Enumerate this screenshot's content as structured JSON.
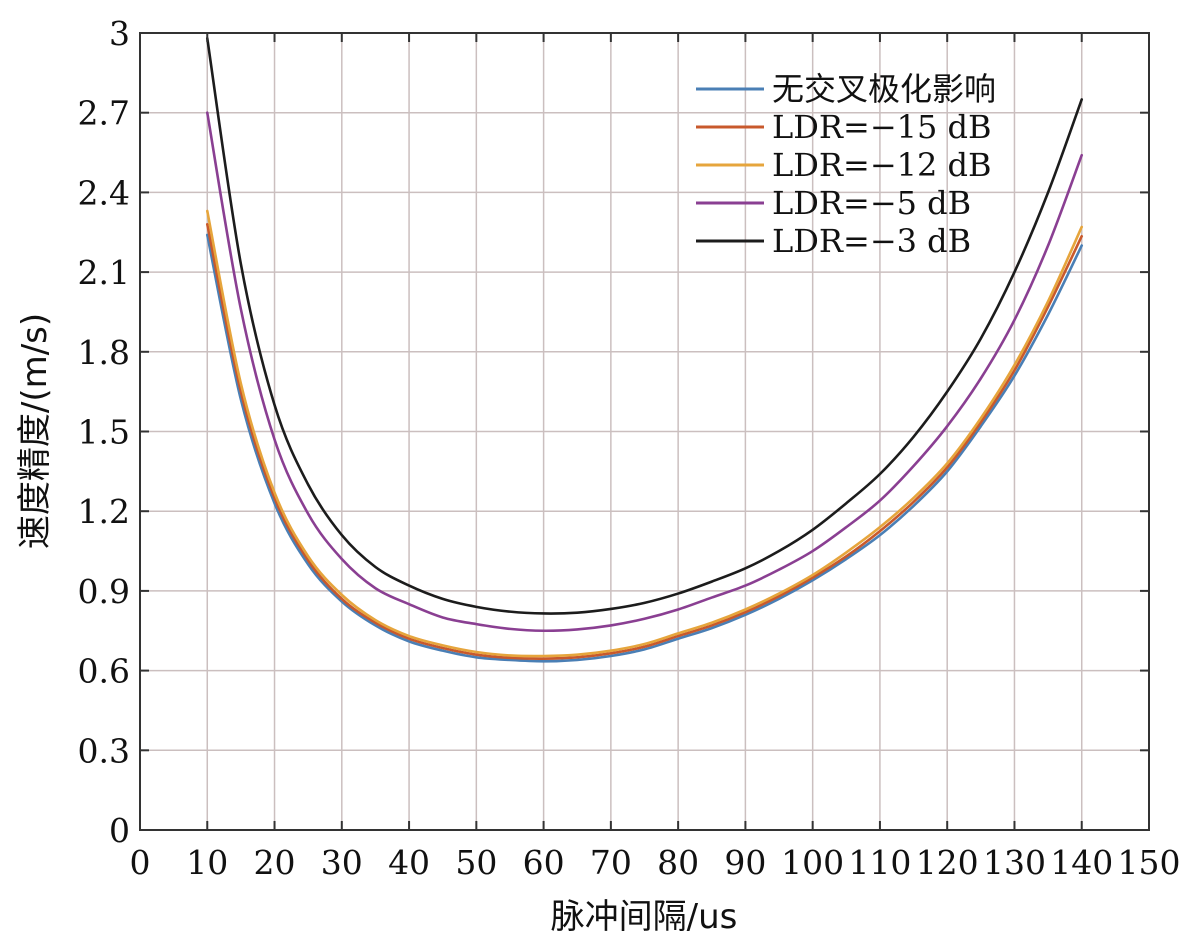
{
  "chart_data": {
    "type": "line",
    "xlabel": "脉冲间隔/us",
    "ylabel": "速度精度/(m/s)",
    "xlim": [
      0,
      150
    ],
    "ylim": [
      0,
      3
    ],
    "xticks": [
      0,
      10,
      20,
      30,
      40,
      50,
      60,
      70,
      80,
      90,
      100,
      110,
      120,
      130,
      140,
      150
    ],
    "yticks": [
      0,
      0.3,
      0.6,
      0.9,
      1.2,
      1.5,
      1.8,
      2.1,
      2.4,
      2.7,
      3
    ],
    "ytick_labels": [
      "0",
      "0.3",
      "0.6",
      "0.9",
      "1.2",
      "1.5",
      "1.8",
      "2.1",
      "2.4",
      "2.7",
      "3"
    ],
    "grid": true,
    "legend_position": "top-right",
    "x": [
      10,
      15,
      20,
      25,
      30,
      35,
      40,
      45,
      50,
      55,
      60,
      65,
      70,
      75,
      80,
      85,
      90,
      95,
      100,
      105,
      110,
      115,
      120,
      125,
      130,
      135,
      140
    ],
    "series": [
      {
        "name": "无交叉极化影响",
        "color": "#4a7fb5",
        "values": [
          2.24,
          1.62,
          1.23,
          1.0,
          0.86,
          0.77,
          0.71,
          0.675,
          0.65,
          0.64,
          0.635,
          0.64,
          0.655,
          0.68,
          0.72,
          0.76,
          0.81,
          0.87,
          0.94,
          1.02,
          1.11,
          1.22,
          1.35,
          1.52,
          1.71,
          1.94,
          2.2
        ]
      },
      {
        "name": "LDR=−15 dB",
        "color": "#c8592c",
        "values": [
          2.28,
          1.65,
          1.25,
          1.015,
          0.87,
          0.78,
          0.72,
          0.685,
          0.66,
          0.648,
          0.645,
          0.65,
          0.665,
          0.69,
          0.73,
          0.77,
          0.82,
          0.88,
          0.95,
          1.03,
          1.125,
          1.235,
          1.365,
          1.535,
          1.73,
          1.97,
          2.235
        ]
      },
      {
        "name": "LDR=−12 dB",
        "color": "#e6a53c",
        "values": [
          2.33,
          1.68,
          1.27,
          1.03,
          0.885,
          0.79,
          0.73,
          0.695,
          0.67,
          0.657,
          0.655,
          0.66,
          0.675,
          0.7,
          0.74,
          0.78,
          0.83,
          0.89,
          0.96,
          1.045,
          1.14,
          1.25,
          1.38,
          1.55,
          1.75,
          1.99,
          2.27
        ]
      },
      {
        "name": "LDR=−5 dB",
        "color": "#8a3f92",
        "values": [
          2.7,
          1.96,
          1.47,
          1.19,
          1.02,
          0.91,
          0.85,
          0.8,
          0.775,
          0.757,
          0.75,
          0.755,
          0.77,
          0.795,
          0.83,
          0.875,
          0.92,
          0.98,
          1.05,
          1.14,
          1.24,
          1.37,
          1.52,
          1.7,
          1.92,
          2.2,
          2.54
        ]
      },
      {
        "name": "LDR=−3 dB",
        "color": "#1c1c1c",
        "values": [
          2.98,
          2.13,
          1.6,
          1.3,
          1.11,
          0.99,
          0.92,
          0.87,
          0.84,
          0.822,
          0.815,
          0.818,
          0.832,
          0.855,
          0.89,
          0.935,
          0.985,
          1.05,
          1.13,
          1.23,
          1.34,
          1.48,
          1.65,
          1.85,
          2.1,
          2.4,
          2.75
        ]
      }
    ]
  }
}
